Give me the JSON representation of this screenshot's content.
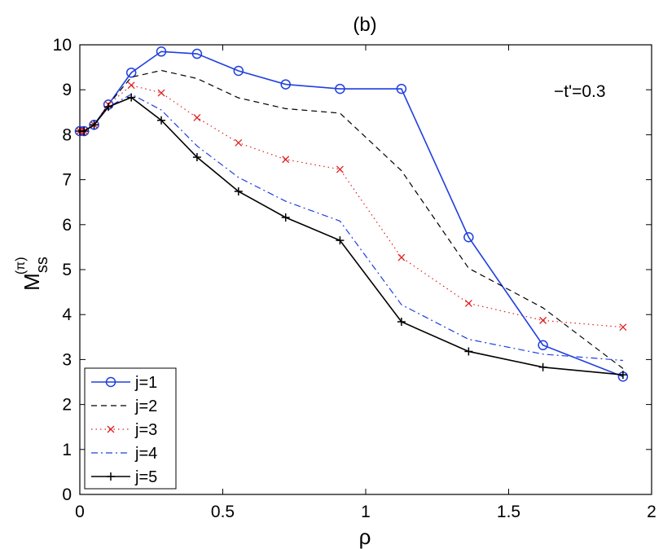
{
  "chart_data": {
    "type": "line",
    "title": "(b)",
    "xlabel": "ρ",
    "ylabel": {
      "base": "M",
      "subscript": "ss",
      "superscript": "(π)"
    },
    "annotation": "−t'=0.3",
    "xlim": [
      0,
      2
    ],
    "ylim": [
      0,
      10
    ],
    "xticks": [
      0,
      0.5,
      1,
      1.5,
      2
    ],
    "xtick_labels": [
      "0",
      "0.5",
      "1",
      "1.5",
      "2"
    ],
    "yticks": [
      0,
      1,
      2,
      3,
      4,
      5,
      6,
      7,
      8,
      9,
      10
    ],
    "ytick_labels": [
      "0",
      "1",
      "2",
      "3",
      "4",
      "5",
      "6",
      "7",
      "8",
      "9",
      "10"
    ],
    "grid": false,
    "legend_position": "bottom-left",
    "x": [
      0,
      0.015,
      0.05,
      0.1,
      0.18,
      0.285,
      0.41,
      0.555,
      0.72,
      0.91,
      1.125,
      1.36,
      1.62,
      1.9
    ],
    "series": [
      {
        "name": "j=1",
        "color": "#1f3fe0",
        "linestyle": "solid",
        "marker": "circle",
        "values": [
          8.08,
          8.08,
          8.22,
          8.67,
          9.38,
          9.85,
          9.8,
          9.42,
          9.12,
          9.02,
          9.02,
          5.72,
          3.32,
          2.62
        ]
      },
      {
        "name": "j=2",
        "color": "#000000",
        "linestyle": "dashed",
        "marker": "none",
        "values": [
          8.08,
          8.08,
          8.22,
          8.67,
          9.28,
          9.43,
          9.25,
          8.82,
          8.58,
          8.48,
          7.2,
          5.03,
          4.15,
          2.8
        ]
      },
      {
        "name": "j=3",
        "color": "#e02020",
        "linestyle": "dotted",
        "marker": "x",
        "values": [
          8.08,
          8.08,
          8.22,
          8.67,
          9.1,
          8.93,
          8.38,
          7.82,
          7.45,
          7.23,
          5.27,
          4.25,
          3.87,
          3.72
        ]
      },
      {
        "name": "j=4",
        "color": "#1f3fe0",
        "linestyle": "dashdot",
        "marker": "none",
        "values": [
          8.08,
          8.08,
          8.22,
          8.62,
          8.9,
          8.55,
          7.75,
          7.05,
          6.52,
          6.08,
          4.22,
          3.45,
          3.12,
          2.98
        ]
      },
      {
        "name": "j=5",
        "color": "#000000",
        "linestyle": "solid",
        "marker": "plus",
        "values": [
          8.08,
          8.08,
          8.22,
          8.62,
          8.83,
          8.32,
          7.5,
          6.74,
          6.16,
          5.65,
          3.84,
          3.18,
          2.83,
          2.66
        ]
      }
    ]
  }
}
